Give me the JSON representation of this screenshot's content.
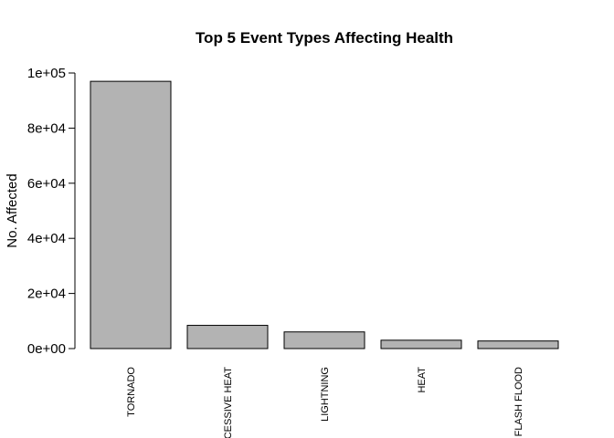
{
  "chart_data": {
    "type": "bar",
    "title": "Top 5 Event Types Affecting Health",
    "xlabel": "",
    "ylabel": "No. Affected",
    "categories": [
      "TORNADO",
      "EXCESSIVE HEAT",
      "LIGHTNING",
      "HEAT",
      "FLASH FLOOD"
    ],
    "values": [
      96979,
      8428,
      6046,
      3037,
      2755
    ],
    "ylim": [
      0,
      100000
    ],
    "yticks": [
      0,
      20000,
      40000,
      60000,
      80000,
      100000
    ],
    "ytick_labels": [
      "0e+00",
      "2e+04",
      "4e+04",
      "6e+04",
      "8e+04",
      "1e+05"
    ],
    "bar_color": "#b3b3b3",
    "grid": false,
    "legend": "none"
  }
}
